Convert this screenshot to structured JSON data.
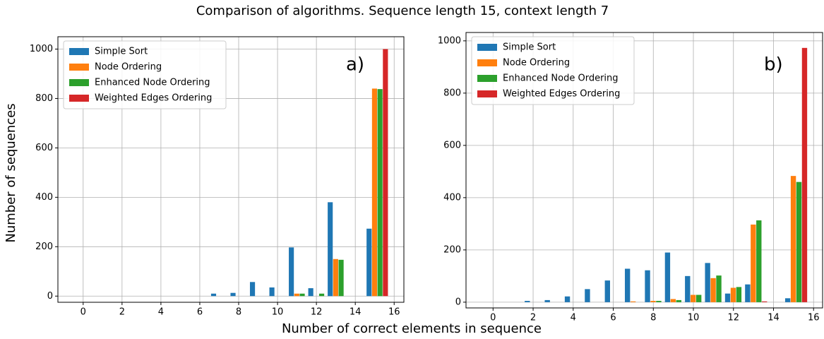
{
  "title": "Comparison of algorithms. Sequence length 15, context length 7",
  "x_label": "Number of correct elements in sequence",
  "y_label": "Number of sequences",
  "chart_data": [
    {
      "type": "bar",
      "annotation": "a)",
      "legend": "upper left",
      "grid": true,
      "x": [
        0,
        1,
        2,
        3,
        4,
        5,
        6,
        7,
        8,
        9,
        10,
        11,
        12,
        13,
        14,
        15
      ],
      "series": [
        {
          "name": "Simple Sort",
          "color": "#1f77b4",
          "values": [
            0,
            0,
            0,
            0,
            0,
            0,
            0,
            10,
            13,
            57,
            35,
            197,
            32,
            380,
            0,
            273
          ]
        },
        {
          "name": "Node Ordering",
          "color": "#ff7f0e",
          "values": [
            0,
            0,
            0,
            0,
            0,
            0,
            0,
            0,
            0,
            0,
            0,
            10,
            0,
            150,
            0,
            840
          ]
        },
        {
          "name": "Enhanced Node Ordering",
          "color": "#2ca02c",
          "values": [
            0,
            0,
            0,
            0,
            0,
            0,
            0,
            0,
            0,
            0,
            0,
            10,
            10,
            147,
            0,
            838
          ]
        },
        {
          "name": "Weighted Edges Ordering",
          "color": "#d62728",
          "values": [
            0,
            0,
            0,
            0,
            0,
            0,
            0,
            0,
            0,
            0,
            0,
            0,
            0,
            0,
            0,
            1000
          ]
        }
      ],
      "xlim": [
        -1.3,
        16.5
      ],
      "ylim": [
        -25,
        1050
      ],
      "xticks": [
        0,
        2,
        4,
        6,
        8,
        10,
        12,
        14,
        16
      ],
      "yticks": [
        0,
        200,
        400,
        600,
        800,
        1000
      ]
    },
    {
      "type": "bar",
      "annotation": "b)",
      "legend": "upper left",
      "grid": true,
      "x": [
        0,
        1,
        2,
        3,
        4,
        5,
        6,
        7,
        8,
        9,
        10,
        11,
        12,
        13,
        14,
        15
      ],
      "series": [
        {
          "name": "Simple Sort",
          "color": "#1f77b4",
          "values": [
            0,
            0,
            5,
            8,
            22,
            50,
            83,
            128,
            122,
            190,
            100,
            150,
            33,
            68,
            0,
            15
          ]
        },
        {
          "name": "Node Ordering",
          "color": "#ff7f0e",
          "values": [
            0,
            0,
            0,
            0,
            0,
            0,
            0,
            3,
            5,
            12,
            28,
            92,
            55,
            297,
            0,
            483
          ]
        },
        {
          "name": "Enhanced Node Ordering",
          "color": "#2ca02c",
          "values": [
            0,
            0,
            0,
            0,
            0,
            0,
            0,
            0,
            5,
            8,
            28,
            102,
            58,
            313,
            0,
            460
          ]
        },
        {
          "name": "Weighted Edges Ordering",
          "color": "#d62728",
          "values": [
            0,
            0,
            0,
            0,
            0,
            0,
            0,
            0,
            0,
            0,
            0,
            0,
            0,
            3,
            0,
            973
          ]
        }
      ],
      "xlim": [
        -1.35,
        16.45
      ],
      "ylim": [
        -22,
        1032
      ],
      "xticks": [
        0,
        2,
        4,
        6,
        8,
        10,
        12,
        14,
        16
      ],
      "yticks": [
        0,
        200,
        400,
        600,
        800,
        1000
      ]
    }
  ]
}
